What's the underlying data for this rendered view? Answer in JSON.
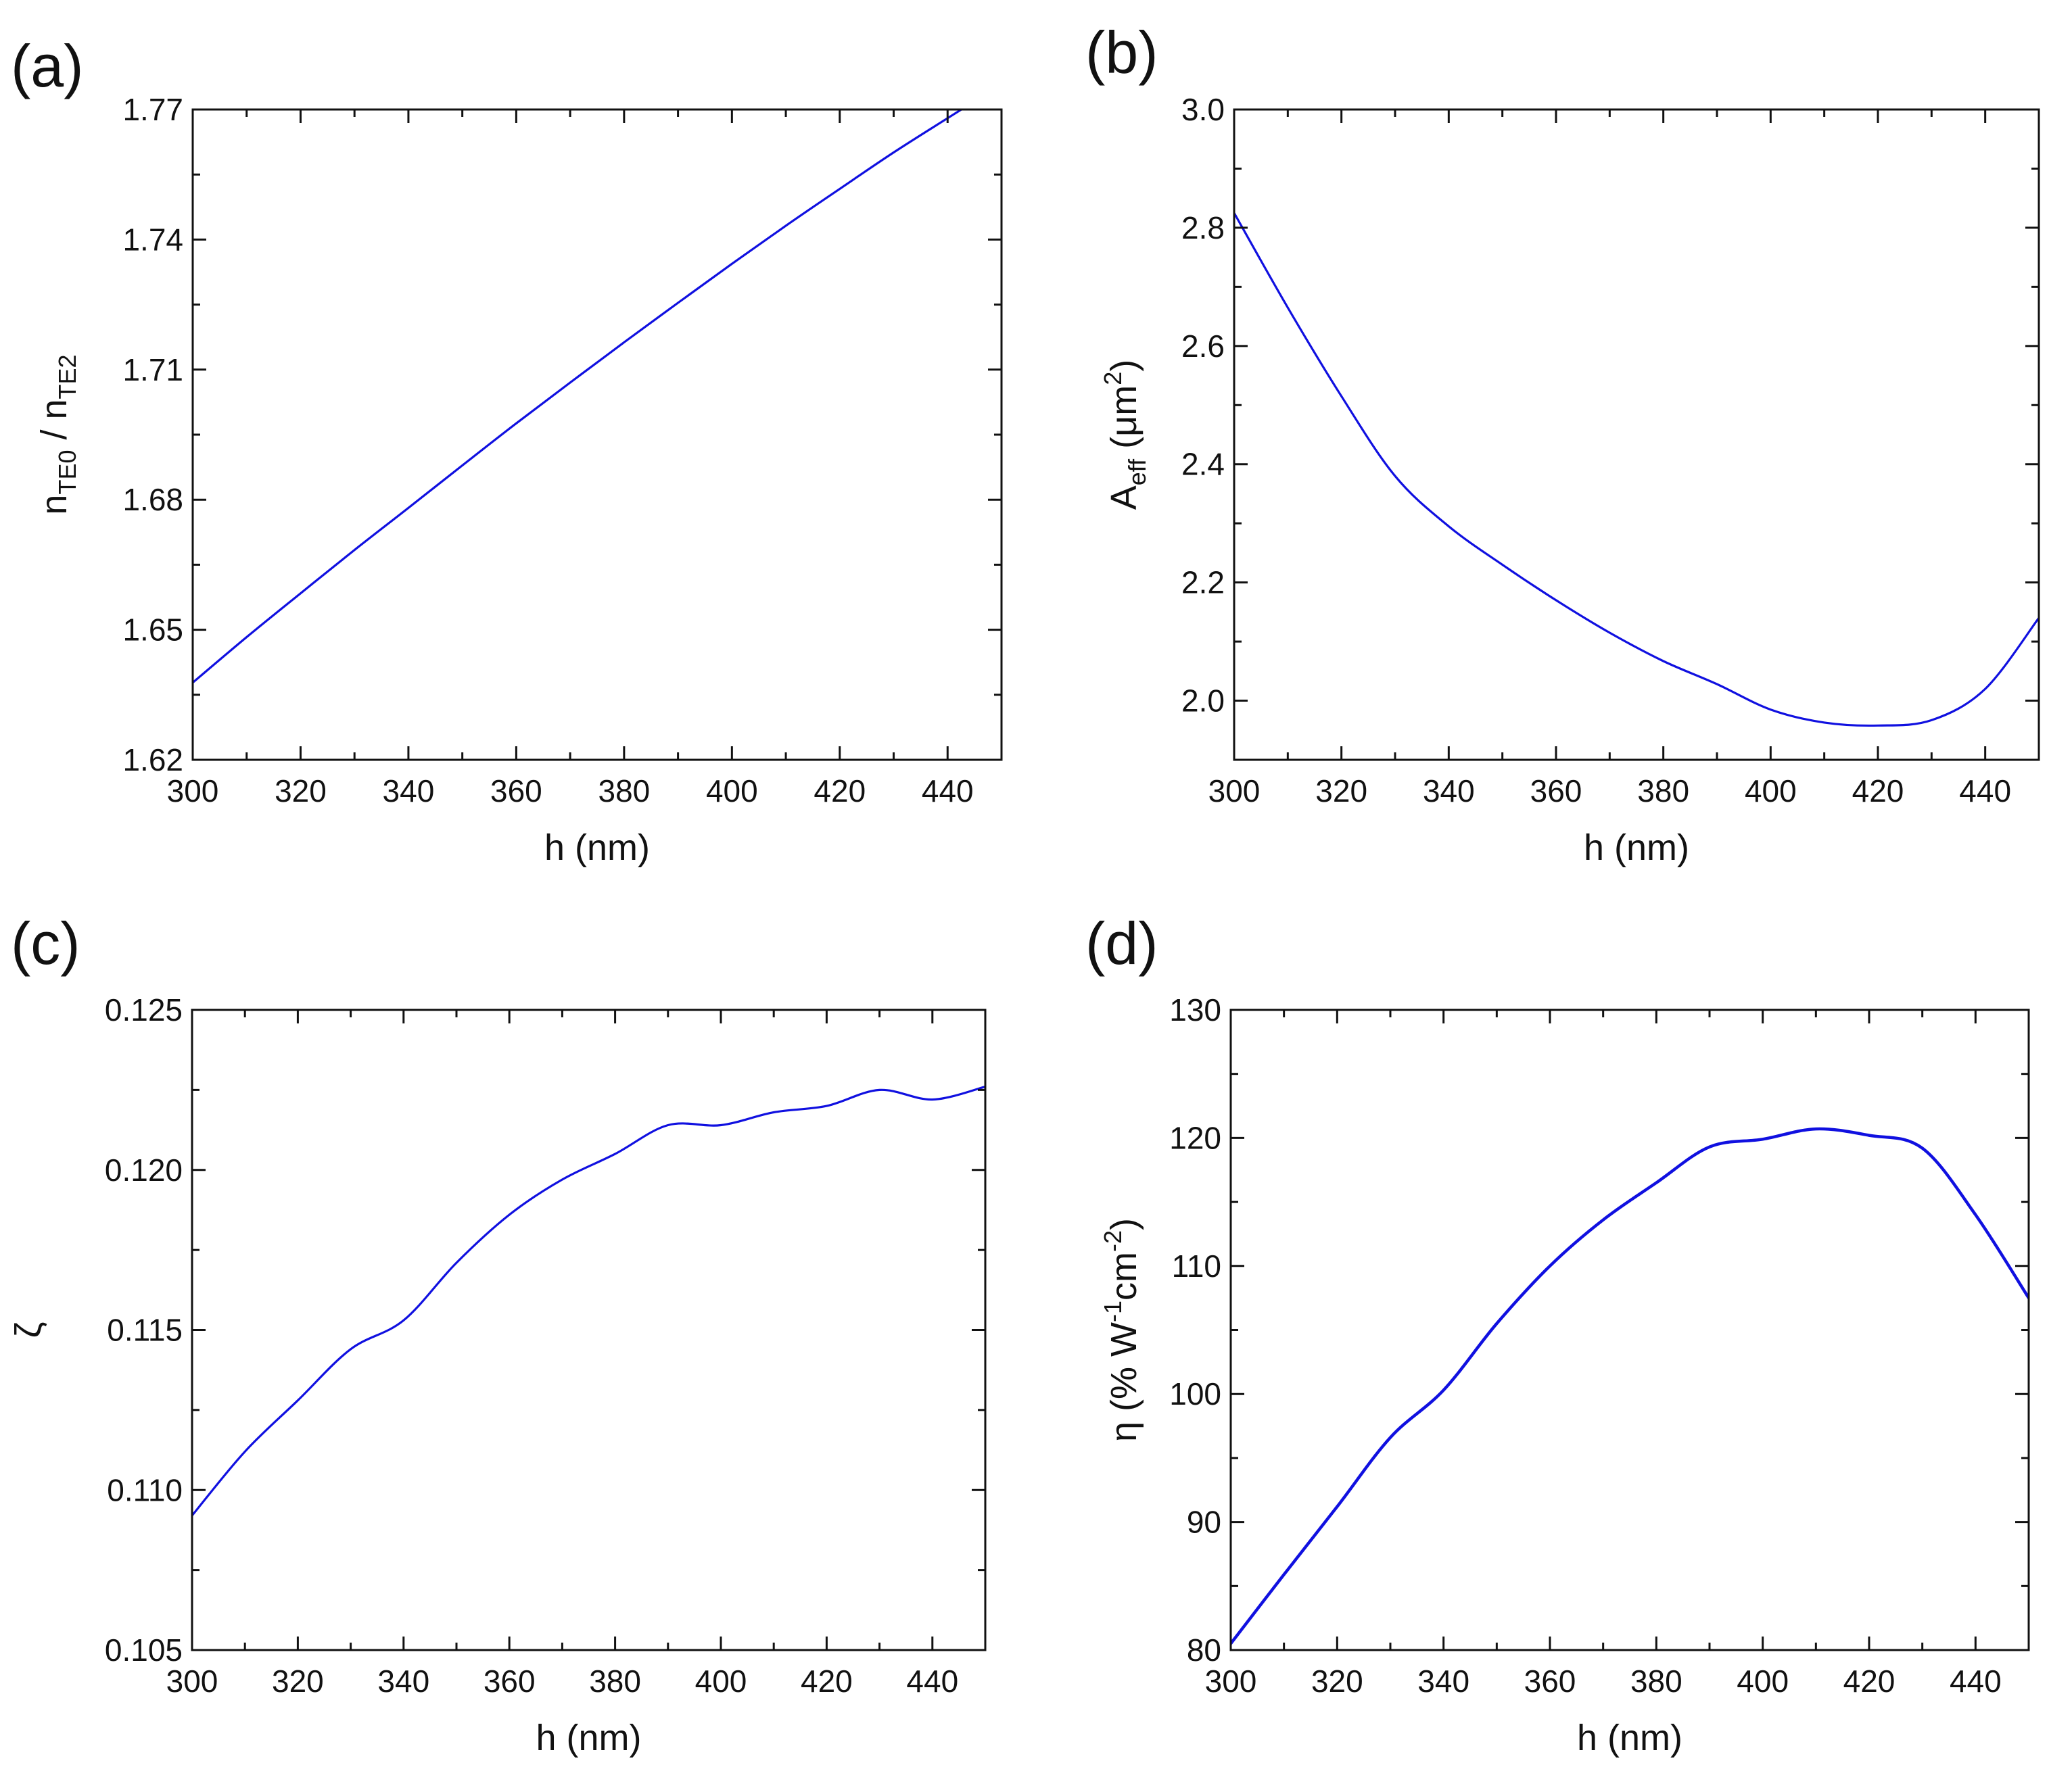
{
  "chart_data": [
    {
      "type": "line",
      "panel_label": "(a)",
      "x": [
        300,
        310,
        320,
        330,
        340,
        350,
        360,
        370,
        380,
        390,
        400,
        410,
        420,
        430,
        440,
        450
      ],
      "series": [
        {
          "name": "n_TE0 / n_TE2",
          "color": "#1010e0",
          "values": [
            1.6378,
            1.6483,
            1.6584,
            1.6684,
            1.6781,
            1.6879,
            1.6976,
            1.707,
            1.7163,
            1.7254,
            1.7344,
            1.7432,
            1.7517,
            1.7601,
            1.768,
            1.7758
          ]
        }
      ],
      "xlim": [
        300,
        450
      ],
      "ylim": [
        1.62,
        1.77
      ],
      "xticks": [
        300,
        320,
        340,
        360,
        380,
        400,
        420,
        440
      ],
      "xtick_labels": [
        "300",
        "320",
        "340",
        "360",
        "380",
        "400",
        "420",
        "440"
      ],
      "yticks": [
        1.62,
        1.65,
        1.68,
        1.71,
        1.74,
        1.77
      ],
      "ytick_labels": [
        "1.62",
        "1.65",
        "1.68",
        "1.71",
        "1.74",
        "1.77"
      ],
      "xlabel": "h (nm)",
      "ylabel": {
        "parts": [
          {
            "t": "n",
            "s": "normal"
          },
          {
            "t": "TE0",
            "s": "sub"
          },
          {
            "t": " / n",
            "s": "normal"
          },
          {
            "t": "TE2",
            "s": "sub"
          }
        ]
      }
    },
    {
      "type": "line",
      "panel_label": "(b)",
      "x": [
        300,
        310,
        320,
        330,
        340,
        350,
        360,
        370,
        380,
        390,
        400,
        410,
        420,
        430,
        440,
        450
      ],
      "series": [
        {
          "name": "A_eff",
          "color": "#1010e0",
          "values": [
            2.825,
            2.665,
            2.515,
            2.38,
            2.295,
            2.23,
            2.17,
            2.115,
            2.067,
            2.028,
            1.985,
            1.963,
            1.958,
            1.967,
            2.02,
            2.14
          ]
        }
      ],
      "xlim": [
        300,
        450
      ],
      "ylim": [
        1.9,
        3.0
      ],
      "xticks": [
        300,
        320,
        340,
        360,
        380,
        400,
        420,
        440
      ],
      "xtick_labels": [
        "300",
        "320",
        "340",
        "360",
        "380",
        "400",
        "420",
        "440"
      ],
      "yticks": [
        2.0,
        2.2,
        2.4,
        2.6,
        2.8,
        3.0
      ],
      "ytick_labels": [
        "2.0",
        "2.2",
        "2.4",
        "2.6",
        "2.8",
        "3.0"
      ],
      "xlabel": "h (nm)",
      "ylabel": {
        "parts": [
          {
            "t": "A",
            "s": "normal"
          },
          {
            "t": "eff",
            "s": "sub"
          },
          {
            "t": "  (μm",
            "s": "normal"
          },
          {
            "t": "2",
            "s": "sup"
          },
          {
            "t": ")",
            "s": "normal"
          }
        ]
      }
    },
    {
      "type": "line",
      "panel_label": "(c)",
      "x": [
        300,
        310,
        320,
        330,
        340,
        350,
        360,
        370,
        380,
        390,
        400,
        410,
        420,
        430,
        440,
        450
      ],
      "series": [
        {
          "name": "zeta",
          "color": "#1010e0",
          "values": [
            0.1092,
            0.1112,
            0.1128,
            0.1144,
            0.1153,
            0.1171,
            0.1186,
            0.1197,
            0.1205,
            0.1214,
            0.1214,
            0.1218,
            0.122,
            0.1225,
            0.1222,
            0.1226
          ]
        }
      ],
      "xlim": [
        300,
        450
      ],
      "ylim": [
        0.105,
        0.125
      ],
      "xticks": [
        300,
        320,
        340,
        360,
        380,
        400,
        420,
        440
      ],
      "xtick_labels": [
        "300",
        "320",
        "340",
        "360",
        "380",
        "400",
        "420",
        "440"
      ],
      "yticks": [
        0.105,
        0.11,
        0.115,
        0.12,
        0.125
      ],
      "ytick_labels": [
        "0.105",
        "0.110",
        "0.115",
        "0.120",
        "0.125"
      ],
      "xlabel": "h (nm)",
      "ylabel": {
        "parts": [
          {
            "t": "ζ",
            "s": "normal"
          }
        ]
      }
    },
    {
      "type": "line",
      "panel_label": "(d)",
      "x": [
        300,
        310,
        320,
        330,
        340,
        350,
        360,
        370,
        380,
        390,
        400,
        410,
        420,
        430,
        440,
        450
      ],
      "series": [
        {
          "name": "eta",
          "color": "#1010e0",
          "values": [
            80.5,
            85.9,
            91.2,
            96.6,
            100.3,
            105.5,
            110.0,
            113.6,
            116.5,
            119.3,
            119.9,
            120.7,
            120.2,
            119.2,
            114.0,
            107.5
          ]
        }
      ],
      "xlim": [
        300,
        450
      ],
      "ylim": [
        80,
        130
      ],
      "xticks": [
        300,
        320,
        340,
        360,
        380,
        400,
        420,
        440
      ],
      "xtick_labels": [
        "300",
        "320",
        "340",
        "360",
        "380",
        "400",
        "420",
        "440"
      ],
      "yticks": [
        80,
        90,
        100,
        110,
        120,
        130
      ],
      "ytick_labels": [
        "80",
        "90",
        "100",
        "110",
        "120",
        "130"
      ],
      "xlabel": "h (nm)",
      "ylabel": {
        "parts": [
          {
            "t": "η (% W",
            "s": "normal"
          },
          {
            "t": "-1",
            "s": "sup"
          },
          {
            "t": "cm",
            "s": "normal"
          },
          {
            "t": "-2",
            "s": "sup"
          },
          {
            "t": ")",
            "s": "normal"
          }
        ]
      }
    }
  ]
}
